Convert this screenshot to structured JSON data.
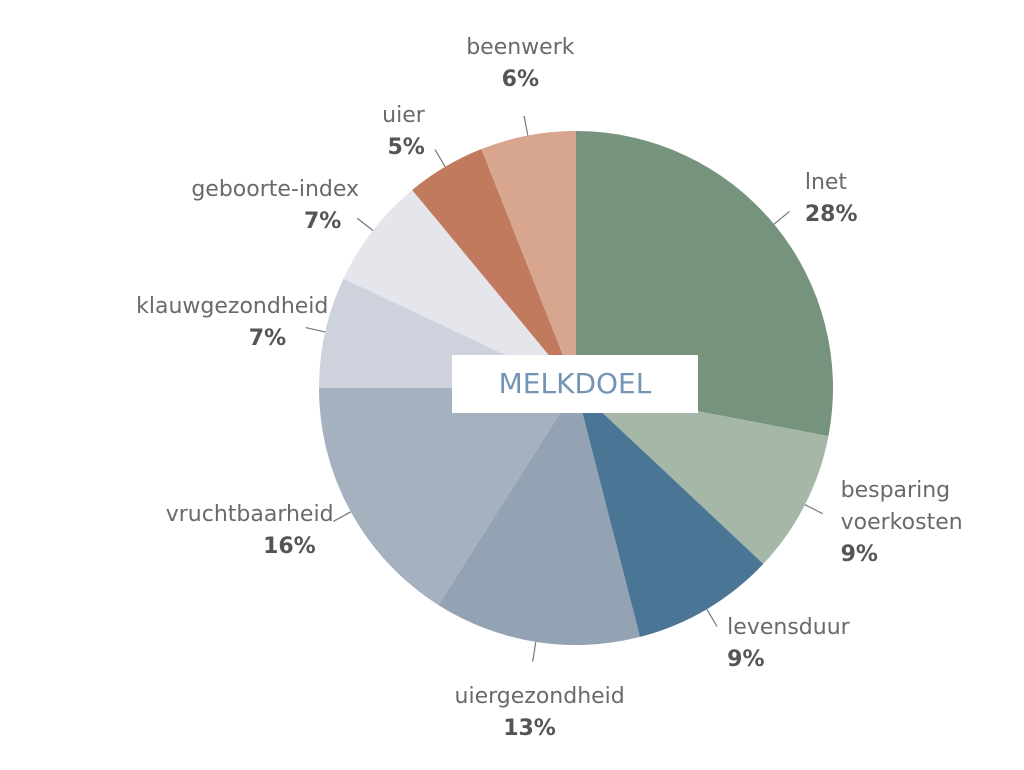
{
  "chart_data": {
    "type": "pie",
    "title": "MELKDOEL",
    "categories": [
      "lnet",
      "besparing voerkosten",
      "levensduur",
      "uiergezondheid",
      "vruchtbaarheid",
      "klauwgezondheid",
      "geboorte-index",
      "uier",
      "beenwerk"
    ],
    "values": [
      28,
      9,
      9,
      13,
      16,
      7,
      7,
      5,
      6
    ],
    "value_labels": [
      "28%",
      "9%",
      "9%",
      "13%",
      "16%",
      "7%",
      "7%",
      "5%",
      "6%"
    ],
    "colors": [
      "#76937e",
      "#a5b8a8",
      "#4a7594",
      "#93a3b3",
      "#a6b1bf",
      "#cdd2dc",
      "#e5e6eb",
      "#c17a5d",
      "#d8a68e"
    ]
  }
}
